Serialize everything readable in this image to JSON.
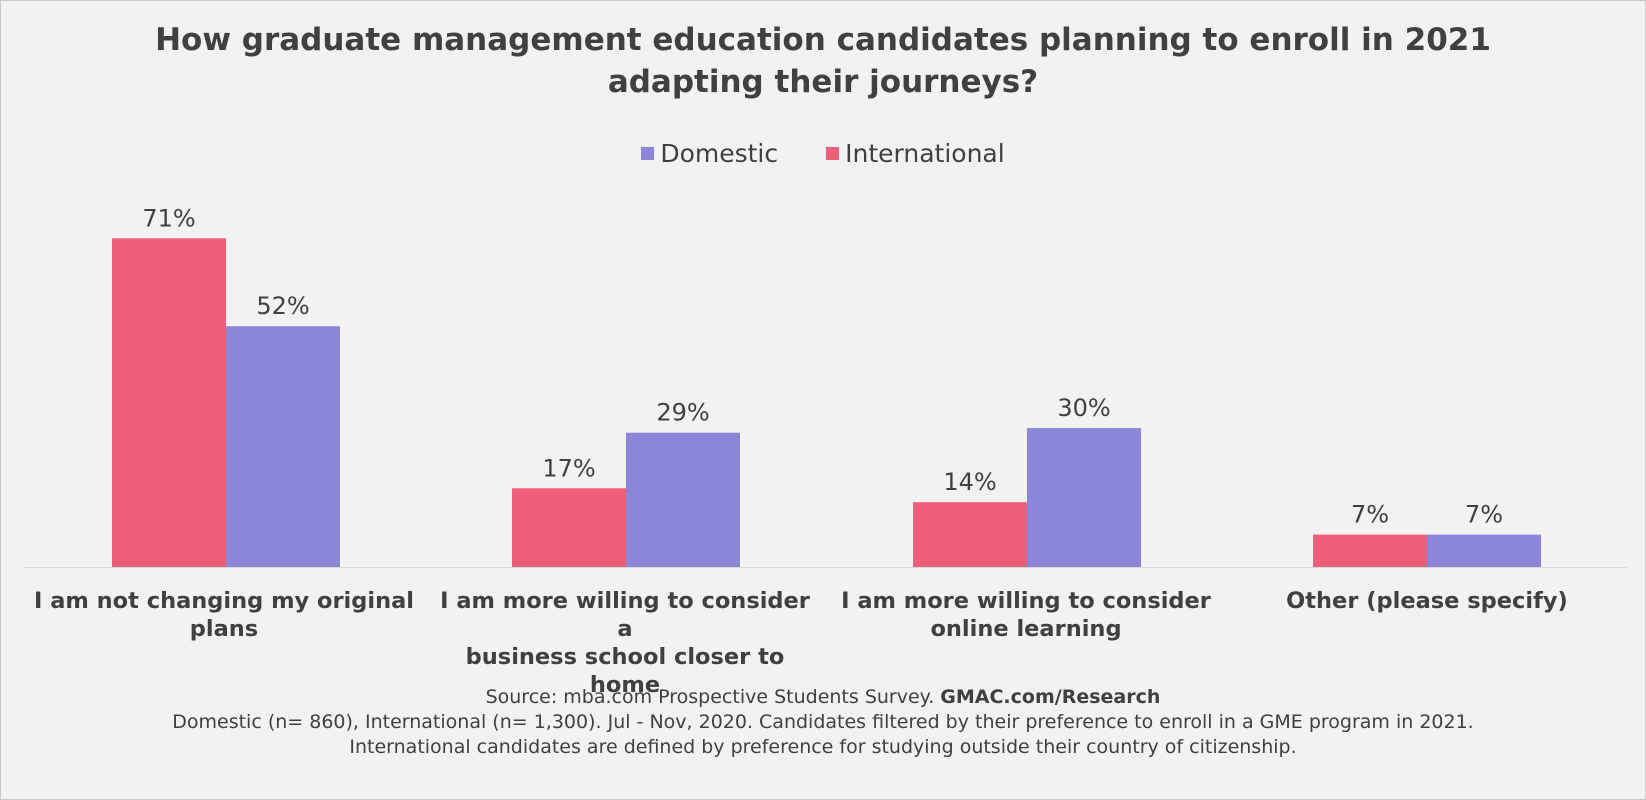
{
  "title_lines": [
    "How graduate management education candidates planning to enroll in 2021",
    "adapting their journeys?"
  ],
  "legend": [
    {
      "label": "Domestic",
      "color": "#8b86d9"
    },
    {
      "label": "International",
      "color": "#ee607a"
    }
  ],
  "category_labels": [
    [
      "I am not changing my original",
      "plans"
    ],
    [
      "I am more willing to consider a",
      "business school closer to home"
    ],
    [
      "I am more willing to consider",
      "online learning"
    ],
    [
      "Other (please specify)"
    ]
  ],
  "chart_data": {
    "type": "bar",
    "categories": [
      "I am not changing my original plans",
      "I am more willing to consider a business school closer to home",
      "I am more willing to consider online learning",
      "Other (please specify)"
    ],
    "series": [
      {
        "name": "International",
        "color": "#ee607a",
        "values": [
          71,
          17,
          14,
          7
        ],
        "labels": [
          "71%",
          "17%",
          "14%",
          "7%"
        ]
      },
      {
        "name": "Domestic",
        "color": "#8b86d9",
        "values": [
          52,
          29,
          30,
          7
        ],
        "labels": [
          "52%",
          "29%",
          "30%",
          "7%"
        ]
      }
    ],
    "ylim": [
      0,
      75
    ],
    "grid": false,
    "legend_position": "top"
  },
  "footer": {
    "source_prefix": "Source: mba.com Prospective Students Survey. ",
    "source_link": "GMAC.com/Research",
    "line2": "Domestic (n= 860), International (n= 1,300). Jul - Nov, 2020. Candidates filtered by their preference to enroll in a GME program in 2021.",
    "line3": "International candidates are defined by preference for studying outside their country of citizenship."
  }
}
